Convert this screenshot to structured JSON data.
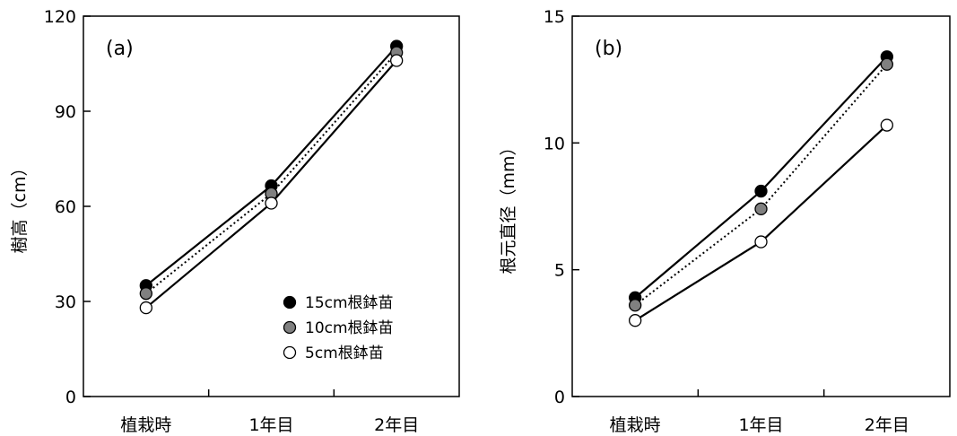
{
  "chart_data": [
    {
      "type": "line",
      "panel_label": "(a)",
      "ylabel": "樹高（cm）",
      "categories": [
        "植栽時",
        "1年目",
        "2年目"
      ],
      "ylim": [
        0,
        120
      ],
      "yticks": [
        "0",
        "30",
        "60",
        "90",
        "120"
      ],
      "grid": false,
      "legend_position": "bottom-right",
      "series": [
        {
          "name": "15cm根鉢苗",
          "marker_color": "#000000",
          "line_style": "solid",
          "values": [
            35,
            66.5,
            110.5
          ]
        },
        {
          "name": "10cm根鉢苗",
          "marker_color": "#808080",
          "line_style": "dotted",
          "values": [
            32.5,
            64,
            108.5
          ]
        },
        {
          "name": "5cm根鉢苗",
          "marker_color": "#ffffff",
          "line_style": "solid",
          "values": [
            28,
            61,
            106
          ]
        }
      ]
    },
    {
      "type": "line",
      "panel_label": "(b)",
      "ylabel": "根元直径（mm）",
      "categories": [
        "植栽時",
        "1年目",
        "2年目"
      ],
      "ylim": [
        0,
        15
      ],
      "yticks": [
        "0",
        "5",
        "10",
        "15"
      ],
      "grid": false,
      "series": [
        {
          "name": "15cm根鉢苗",
          "marker_color": "#000000",
          "line_style": "solid",
          "values": [
            3.9,
            8.1,
            13.4
          ]
        },
        {
          "name": "10cm根鉢苗",
          "marker_color": "#808080",
          "line_style": "dotted",
          "values": [
            3.6,
            7.4,
            13.1
          ]
        },
        {
          "name": "5cm根鉢苗",
          "marker_color": "#ffffff",
          "line_style": "solid",
          "values": [
            3.0,
            6.1,
            10.7
          ]
        }
      ]
    }
  ]
}
